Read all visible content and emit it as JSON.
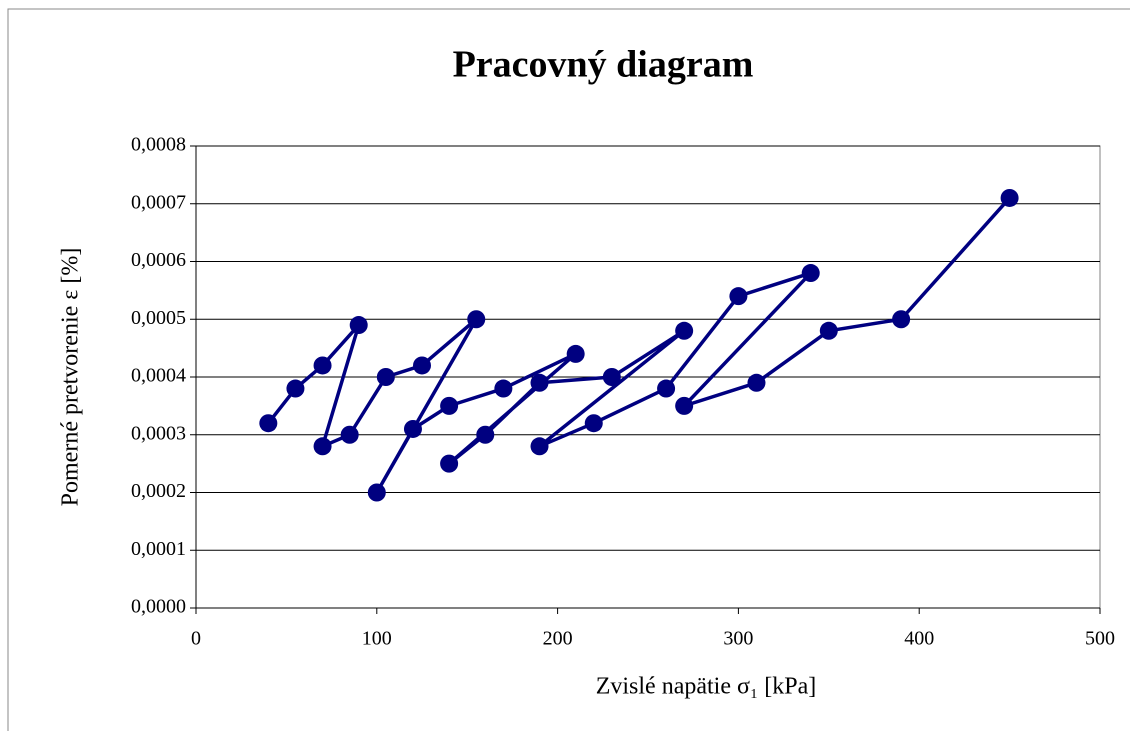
{
  "chart_data": {
    "type": "line",
    "title": "Pracovný diagram",
    "x_label": "Zvislé napätie σ₁ [kPa]",
    "y_label": "Pomerné pretvorenie ε [%]",
    "x": [
      40,
      55,
      70,
      90,
      70,
      85,
      105,
      125,
      155,
      100,
      120,
      140,
      170,
      210,
      140,
      160,
      190,
      230,
      270,
      190,
      220,
      260,
      300,
      340,
      270,
      310,
      350,
      390,
      450
    ],
    "series": [
      {
        "color": "#000080",
        "values": [
          0.00032,
          0.00038,
          0.00042,
          0.00049,
          0.00028,
          0.0003,
          0.0004,
          0.00042,
          0.0005,
          0.0002,
          0.00031,
          0.00035,
          0.00038,
          0.00044,
          0.00025,
          0.0003,
          0.00039,
          0.0004,
          0.00048,
          0.00028,
          0.00032,
          0.00038,
          0.00054,
          0.00058,
          0.00035,
          0.00039,
          0.00048,
          0.0005,
          0.00071
        ]
      }
    ],
    "xlim": [
      0,
      500
    ],
    "xticks": [
      0,
      100,
      200,
      300,
      400,
      500
    ],
    "ylim": [
      0,
      0.0008
    ],
    "yticks": [
      {
        "value": 0,
        "label": "0,0000"
      },
      {
        "value": 0.0001,
        "label": "0,0001"
      },
      {
        "value": 0.0002,
        "label": "0,0002"
      },
      {
        "value": 0.0003,
        "label": "0,0003"
      },
      {
        "value": 0.0004,
        "label": "0,0004"
      },
      {
        "value": 0.0005,
        "label": "0,0005"
      },
      {
        "value": 0.0006,
        "label": "0,0006"
      },
      {
        "value": 0.0007,
        "label": "0,0007"
      },
      {
        "value": 0.0008,
        "label": "0,0008"
      }
    ],
    "grid": true
  }
}
